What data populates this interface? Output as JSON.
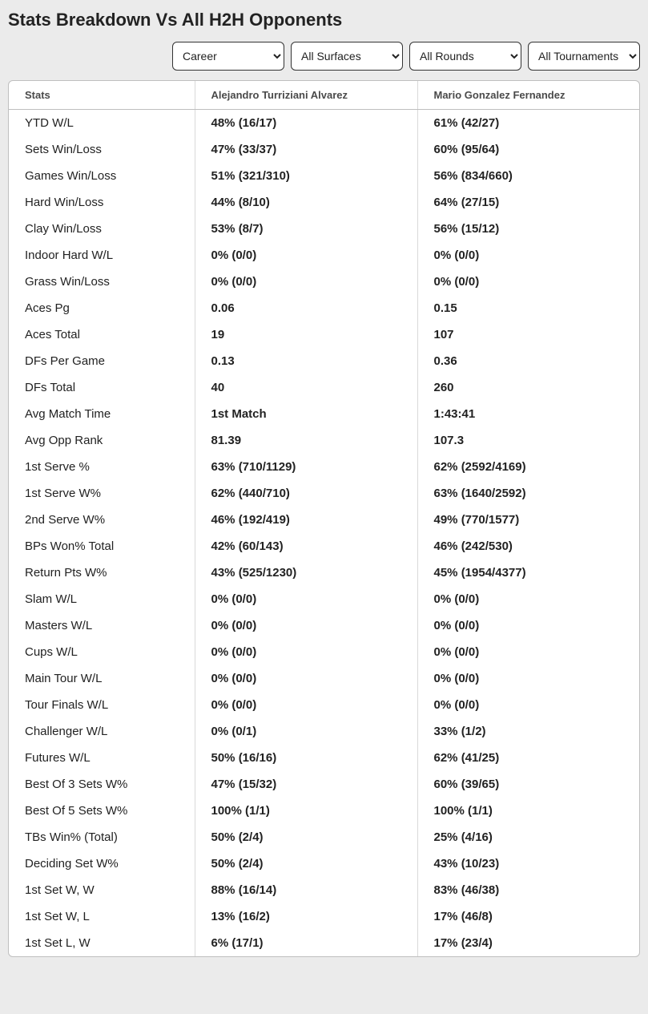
{
  "title": "Stats Breakdown Vs All H2H Opponents",
  "filters": {
    "period": {
      "selected": "Career",
      "options": [
        "Career"
      ]
    },
    "surface": {
      "selected": "All Surfaces",
      "options": [
        "All Surfaces"
      ]
    },
    "round": {
      "selected": "All Rounds",
      "options": [
        "All Rounds"
      ]
    },
    "tournament": {
      "selected": "All Tournaments",
      "options": [
        "All Tournaments"
      ]
    }
  },
  "columns": {
    "stats": "Stats",
    "player1": "Alejandro Turriziani Alvarez",
    "player2": "Mario Gonzalez Fernandez"
  },
  "rows": [
    {
      "label": "YTD W/L",
      "p1": "48% (16/17)",
      "p2": "61% (42/27)"
    },
    {
      "label": "Sets Win/Loss",
      "p1": "47% (33/37)",
      "p2": "60% (95/64)"
    },
    {
      "label": "Games Win/Loss",
      "p1": "51% (321/310)",
      "p2": "56% (834/660)"
    },
    {
      "label": "Hard Win/Loss",
      "p1": "44% (8/10)",
      "p2": "64% (27/15)"
    },
    {
      "label": "Clay Win/Loss",
      "p1": "53% (8/7)",
      "p2": "56% (15/12)"
    },
    {
      "label": "Indoor Hard W/L",
      "p1": "0% (0/0)",
      "p2": "0% (0/0)"
    },
    {
      "label": "Grass Win/Loss",
      "p1": "0% (0/0)",
      "p2": "0% (0/0)"
    },
    {
      "label": "Aces Pg",
      "p1": "0.06",
      "p2": "0.15"
    },
    {
      "label": "Aces Total",
      "p1": "19",
      "p2": "107"
    },
    {
      "label": "DFs Per Game",
      "p1": "0.13",
      "p2": "0.36"
    },
    {
      "label": "DFs Total",
      "p1": "40",
      "p2": "260"
    },
    {
      "label": "Avg Match Time",
      "p1": "1st Match",
      "p2": "1:43:41"
    },
    {
      "label": "Avg Opp Rank",
      "p1": "81.39",
      "p2": "107.3"
    },
    {
      "label": "1st Serve %",
      "p1": "63% (710/1129)",
      "p2": "62% (2592/4169)"
    },
    {
      "label": "1st Serve W%",
      "p1": "62% (440/710)",
      "p2": "63% (1640/2592)"
    },
    {
      "label": "2nd Serve W%",
      "p1": "46% (192/419)",
      "p2": "49% (770/1577)"
    },
    {
      "label": "BPs Won% Total",
      "p1": "42% (60/143)",
      "p2": "46% (242/530)"
    },
    {
      "label": "Return Pts W%",
      "p1": "43% (525/1230)",
      "p2": "45% (1954/4377)"
    },
    {
      "label": "Slam W/L",
      "p1": "0% (0/0)",
      "p2": "0% (0/0)"
    },
    {
      "label": "Masters W/L",
      "p1": "0% (0/0)",
      "p2": "0% (0/0)"
    },
    {
      "label": "Cups W/L",
      "p1": "0% (0/0)",
      "p2": "0% (0/0)"
    },
    {
      "label": "Main Tour W/L",
      "p1": "0% (0/0)",
      "p2": "0% (0/0)"
    },
    {
      "label": "Tour Finals W/L",
      "p1": "0% (0/0)",
      "p2": "0% (0/0)"
    },
    {
      "label": "Challenger W/L",
      "p1": "0% (0/1)",
      "p2": "33% (1/2)"
    },
    {
      "label": "Futures W/L",
      "p1": "50% (16/16)",
      "p2": "62% (41/25)"
    },
    {
      "label": "Best Of 3 Sets W%",
      "p1": "47% (15/32)",
      "p2": "60% (39/65)"
    },
    {
      "label": "Best Of 5 Sets W%",
      "p1": "100% (1/1)",
      "p2": "100% (1/1)"
    },
    {
      "label": "TBs Win% (Total)",
      "p1": "50% (2/4)",
      "p2": "25% (4/16)"
    },
    {
      "label": "Deciding Set W%",
      "p1": "50% (2/4)",
      "p2": "43% (10/23)"
    },
    {
      "label": "1st Set W, W",
      "p1": "88% (16/14)",
      "p2": "83% (46/38)"
    },
    {
      "label": "1st Set W, L",
      "p1": "13% (16/2)",
      "p2": "17% (46/8)"
    },
    {
      "label": "1st Set L, W",
      "p1": "6% (17/1)",
      "p2": "17% (23/4)"
    }
  ]
}
